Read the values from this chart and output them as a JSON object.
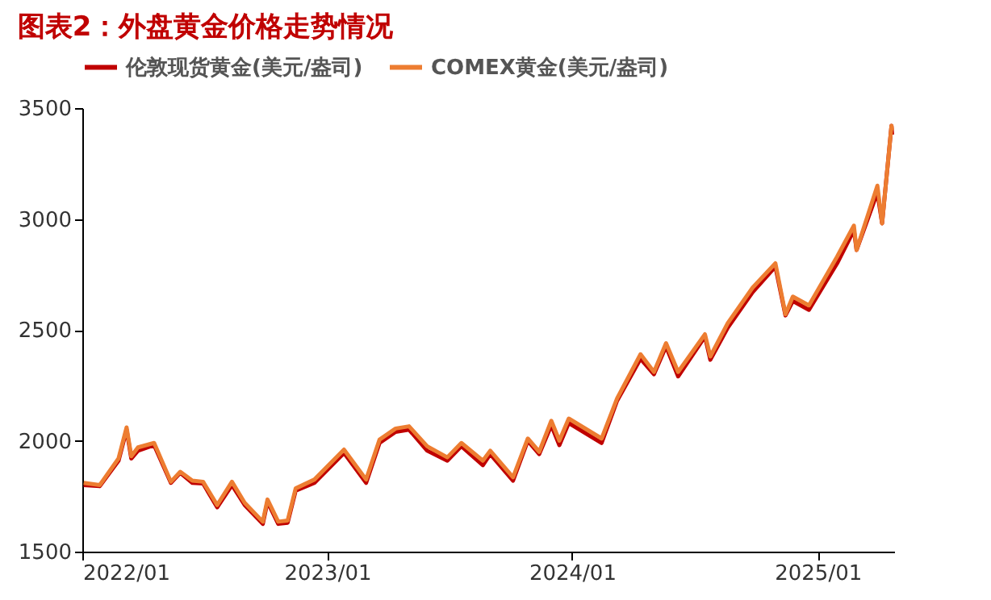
{
  "chart_data": {
    "type": "line",
    "title": "图表2：外盘黄金价格走势情况",
    "x": [
      "2022-01-03",
      "2022-01-27",
      "2022-02-24",
      "2022-03-08",
      "2022-03-15",
      "2022-03-25",
      "2022-04-18",
      "2022-05-13",
      "2022-05-27",
      "2022-06-14",
      "2022-06-30",
      "2022-07-21",
      "2022-08-12",
      "2022-08-31",
      "2022-09-27",
      "2022-10-04",
      "2022-10-20",
      "2022-11-03",
      "2022-11-15",
      "2022-12-13",
      "2023-01-26",
      "2023-02-28",
      "2023-03-20",
      "2023-04-13",
      "2023-05-03",
      "2023-05-30",
      "2023-06-29",
      "2023-07-20",
      "2023-08-21",
      "2023-09-01",
      "2023-10-05",
      "2023-10-27",
      "2023-11-13",
      "2023-12-01",
      "2023-12-13",
      "2023-12-27",
      "2024-02-14",
      "2024-03-08",
      "2024-04-12",
      "2024-05-02",
      "2024-05-20",
      "2024-06-07",
      "2024-07-17",
      "2024-07-25",
      "2024-08-20",
      "2024-09-26",
      "2024-10-30",
      "2024-11-14",
      "2024-11-25",
      "2024-12-19",
      "2025-01-30",
      "2025-02-24",
      "2025-02-28",
      "2025-03-31",
      "2025-04-07",
      "2025-04-21",
      "2025-04-22"
    ],
    "series": [
      {
        "name": "伦敦现货黄金(美元/盎司)",
        "color": "#c00000",
        "values": [
          1800,
          1795,
          1910,
          2050,
          1920,
          1955,
          1980,
          1810,
          1855,
          1810,
          1807,
          1700,
          1800,
          1710,
          1625,
          1725,
          1625,
          1630,
          1775,
          1810,
          1945,
          1810,
          1990,
          2040,
          2050,
          1955,
          1910,
          1975,
          1890,
          1940,
          1820,
          2000,
          1940,
          2070,
          1980,
          2080,
          1990,
          2180,
          2370,
          2300,
          2425,
          2290,
          2470,
          2365,
          2510,
          2670,
          2785,
          2565,
          2630,
          2590,
          2800,
          2950,
          2860,
          3120,
          2980,
          3420,
          3380
        ]
      },
      {
        "name": "COMEX黄金(美元/盎司)",
        "color": "#ed7d31",
        "values": [
          1810,
          1800,
          1920,
          2060,
          1930,
          1970,
          1990,
          1815,
          1860,
          1820,
          1815,
          1710,
          1815,
          1720,
          1635,
          1735,
          1635,
          1640,
          1785,
          1825,
          1960,
          1825,
          2005,
          2055,
          2065,
          1975,
          1925,
          1990,
          1910,
          1955,
          1835,
          2010,
          1950,
          2090,
          2000,
          2100,
          2010,
          2190,
          2390,
          2310,
          2440,
          2310,
          2480,
          2380,
          2530,
          2690,
          2800,
          2570,
          2650,
          2610,
          2830,
          2970,
          2860,
          3150,
          2980,
          3420,
          3400
        ]
      }
    ],
    "xlim": [
      "2022-01-01",
      "2025-04-25"
    ],
    "xticks": [
      {
        "value": "2022-01-01",
        "label": "2022/01"
      },
      {
        "value": "2023-01-01",
        "label": "2023/01"
      },
      {
        "value": "2024-01-01",
        "label": "2024/01"
      },
      {
        "value": "2025-01-01",
        "label": "2025/01"
      }
    ],
    "ylim": [
      1500,
      3500
    ],
    "yticks": [
      1500,
      2000,
      2500,
      3000,
      3500
    ],
    "grid": false,
    "legend": "top",
    "marker": "none",
    "line_style": "solid"
  }
}
